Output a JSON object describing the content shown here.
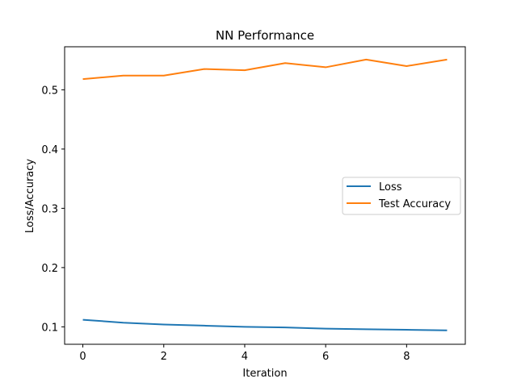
{
  "chart_data": {
    "type": "line",
    "title": "NN Performance",
    "xlabel": "Iteration",
    "ylabel": "Loss/Accuracy",
    "x": [
      0,
      1,
      2,
      3,
      4,
      5,
      6,
      7,
      8,
      9
    ],
    "xlim": [
      -0.45,
      9.45
    ],
    "ylim": [
      0.0706,
      0.5726
    ],
    "xticks": [
      0,
      2,
      4,
      6,
      8
    ],
    "yticks": [
      0.1,
      0.2,
      0.3,
      0.4,
      0.5
    ],
    "xtick_labels": [
      "0",
      "2",
      "4",
      "6",
      "8"
    ],
    "ytick_labels": [
      "0.1",
      "0.2",
      "0.3",
      "0.4",
      "0.5"
    ],
    "grid": false,
    "legend_position": "center-right",
    "series": [
      {
        "name": "Loss",
        "color": "#1f77b4",
        "values": [
          0.112,
          0.107,
          0.104,
          0.102,
          0.1,
          0.099,
          0.097,
          0.096,
          0.095,
          0.094
        ]
      },
      {
        "name": "Test Accuracy",
        "color": "#ff7f0e",
        "values": [
          0.518,
          0.524,
          0.524,
          0.535,
          0.533,
          0.545,
          0.538,
          0.551,
          0.54,
          0.551
        ]
      }
    ]
  }
}
